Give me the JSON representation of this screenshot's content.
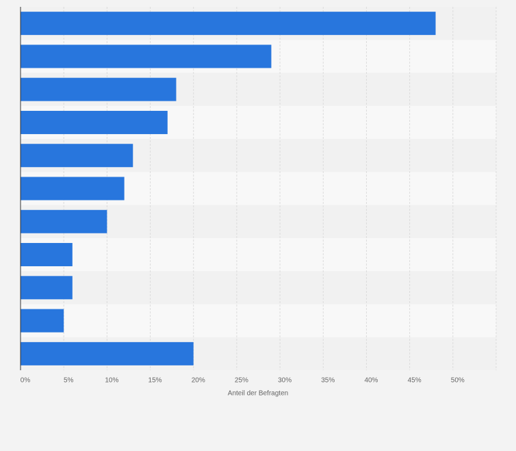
{
  "chart_data": {
    "type": "bar",
    "orientation": "horizontal",
    "categories": [
      null,
      null,
      null,
      null,
      null,
      null,
      null,
      null,
      null,
      null,
      null
    ],
    "values": [
      48,
      29,
      18,
      17,
      13,
      12,
      10,
      6,
      6,
      5,
      20
    ],
    "color": "#2876dd",
    "xlabel": "Anteil der Befragten",
    "xlim": [
      0,
      55
    ],
    "xticks": [
      {
        "value": 0,
        "label": "0%"
      },
      {
        "value": 5,
        "label": "5%"
      },
      {
        "value": 10,
        "label": "10%"
      },
      {
        "value": 15,
        "label": "15%"
      },
      {
        "value": 20,
        "label": "20%"
      },
      {
        "value": 25,
        "label": "25%"
      },
      {
        "value": 30,
        "label": "30%"
      },
      {
        "value": 35,
        "label": "35%"
      },
      {
        "value": 40,
        "label": "40%"
      },
      {
        "value": 45,
        "label": "45%"
      },
      {
        "value": 50,
        "label": "50%"
      }
    ],
    "grid": true
  }
}
